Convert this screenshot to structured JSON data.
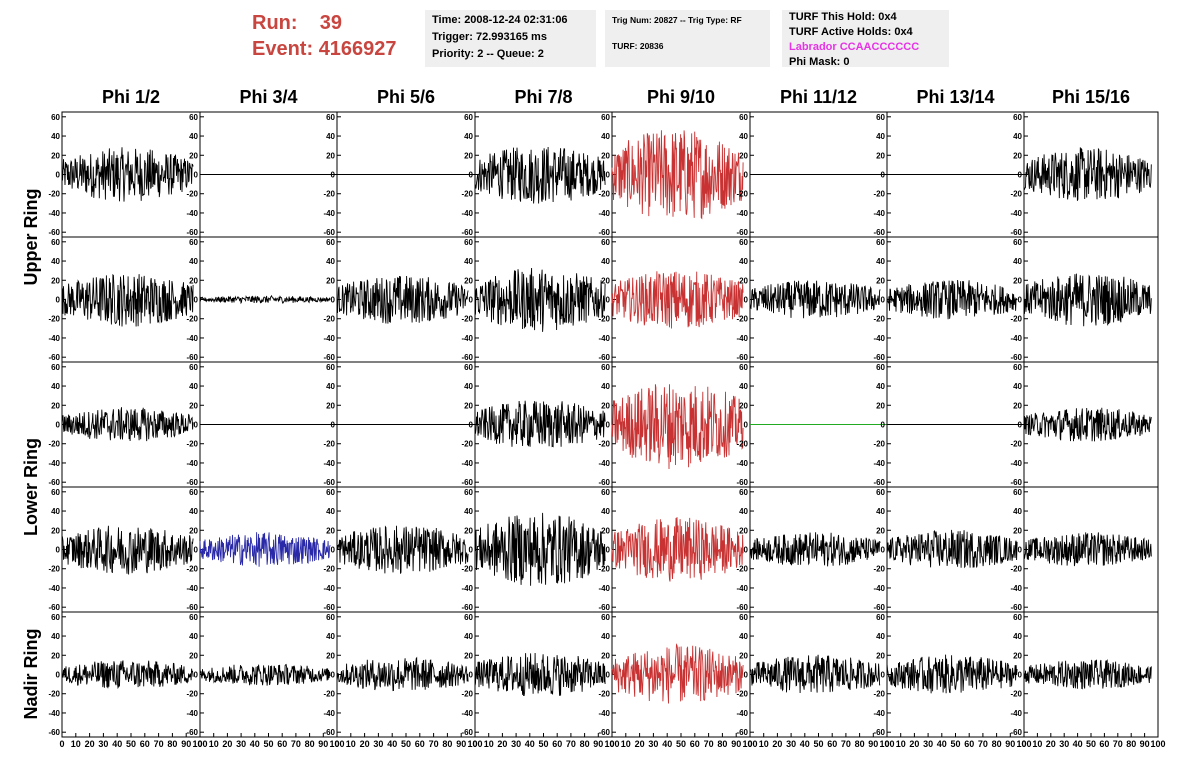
{
  "header": {
    "run_label": "Run:",
    "run_value": "39",
    "event_label": "Event:",
    "event_value": "4166927",
    "time": "Time: 2008-12-24 02:31:06",
    "trigger": "Trigger: 72.993165 ms",
    "priority": "Priority: 2 -- Queue: 2",
    "trig_num": "Trig Num: 20827 -- Trig Type: RF",
    "turf": "TURF: 20836",
    "turf_hold": "TURF This Hold: 0x4",
    "turf_active": "TURF Active Holds: 0x4",
    "labrador": "Labrador CCAACCCCCC",
    "phi_mask": "Phi Mask: 0",
    "labrador_color": "#e633e6",
    "run_color": "#c8463f"
  },
  "chart_data": {
    "type": "line",
    "columns": [
      "Phi 1/2",
      "Phi 3/4",
      "Phi 5/6",
      "Phi 7/8",
      "Phi 9/10",
      "Phi 11/12",
      "Phi 13/14",
      "Phi 15/16"
    ],
    "rows": [
      "Upper Ring",
      "Upper Ring",
      "Lower Ring",
      "Lower Ring",
      "Nadir Ring"
    ],
    "row_group_labels": [
      "Upper Ring",
      "Lower Ring",
      "Nadir Ring"
    ],
    "xlim": [
      0,
      100
    ],
    "ylim": [
      -65,
      65
    ],
    "x_tick_labels": [
      "0",
      "10",
      "20",
      "30",
      "40",
      "50",
      "60",
      "70",
      "80",
      "90",
      "100"
    ],
    "y_tick_labels": [
      "-60",
      "-40",
      "-20",
      "0",
      "20",
      "40",
      "60"
    ],
    "line_colors": {
      "default": "#000000",
      "phi_sector": "#c83232",
      "other_antenna": "#2a2aa8",
      "masked": "#22aa22"
    },
    "panels": [
      [
        "black",
        "flat",
        "flat",
        "black",
        "red",
        "flat",
        "flat",
        "black"
      ],
      [
        "black",
        "small",
        "black",
        "black",
        "red",
        "black",
        "black",
        "black"
      ],
      [
        "black",
        "flat",
        "flat",
        "black",
        "red",
        "green-flat",
        "flat",
        "black"
      ],
      [
        "black",
        "blue",
        "black",
        "black",
        "red",
        "black",
        "black",
        "black"
      ],
      [
        "black",
        "black",
        "black",
        "black",
        "red",
        "black",
        "black",
        "black"
      ]
    ],
    "amplitudes": [
      [
        22,
        0,
        0,
        24,
        38,
        0,
        0,
        22
      ],
      [
        22,
        3,
        20,
        26,
        24,
        16,
        16,
        22
      ],
      [
        14,
        0,
        0,
        20,
        36,
        0,
        0,
        14
      ],
      [
        20,
        14,
        20,
        30,
        26,
        14,
        16,
        14
      ],
      [
        12,
        9,
        14,
        18,
        24,
        16,
        16,
        12
      ]
    ]
  }
}
